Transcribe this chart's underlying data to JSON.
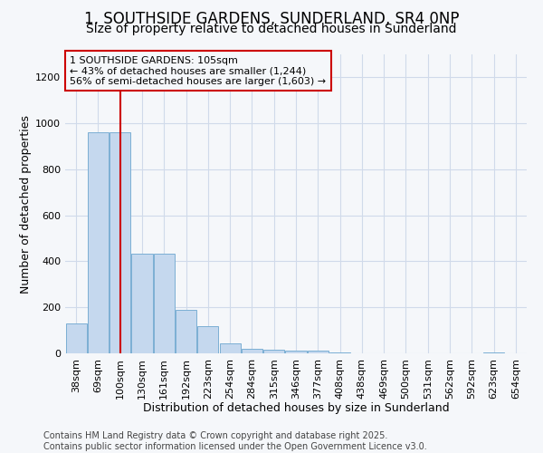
{
  "title": "1, SOUTHSIDE GARDENS, SUNDERLAND, SR4 0NP",
  "subtitle": "Size of property relative to detached houses in Sunderland",
  "xlabel": "Distribution of detached houses by size in Sunderland",
  "ylabel": "Number of detached properties",
  "categories": [
    "38sqm",
    "69sqm",
    "100sqm",
    "130sqm",
    "161sqm",
    "192sqm",
    "223sqm",
    "254sqm",
    "284sqm",
    "315sqm",
    "346sqm",
    "377sqm",
    "408sqm",
    "438sqm",
    "469sqm",
    "500sqm",
    "531sqm",
    "562sqm",
    "592sqm",
    "623sqm",
    "654sqm"
  ],
  "values": [
    130,
    960,
    960,
    435,
    435,
    190,
    120,
    45,
    20,
    15,
    10,
    10,
    5,
    0,
    0,
    0,
    0,
    0,
    0,
    5,
    0
  ],
  "bar_color": "#c5d8ee",
  "bar_edge_color": "#7bafd4",
  "red_line_index": 2,
  "red_line_color": "#cc0000",
  "ylim": [
    0,
    1300
  ],
  "yticks": [
    0,
    200,
    400,
    600,
    800,
    1000,
    1200
  ],
  "annotation_text": "1 SOUTHSIDE GARDENS: 105sqm\n← 43% of detached houses are smaller (1,244)\n56% of semi-detached houses are larger (1,603) →",
  "annotation_box_color": "#cc0000",
  "footnote1": "Contains HM Land Registry data © Crown copyright and database right 2025.",
  "footnote2": "Contains public sector information licensed under the Open Government Licence v3.0.",
  "bg_color": "#f5f7fa",
  "grid_color": "#d0daea",
  "title_fontsize": 12,
  "subtitle_fontsize": 10,
  "axis_label_fontsize": 9,
  "tick_fontsize": 8,
  "footnote_fontsize": 7
}
